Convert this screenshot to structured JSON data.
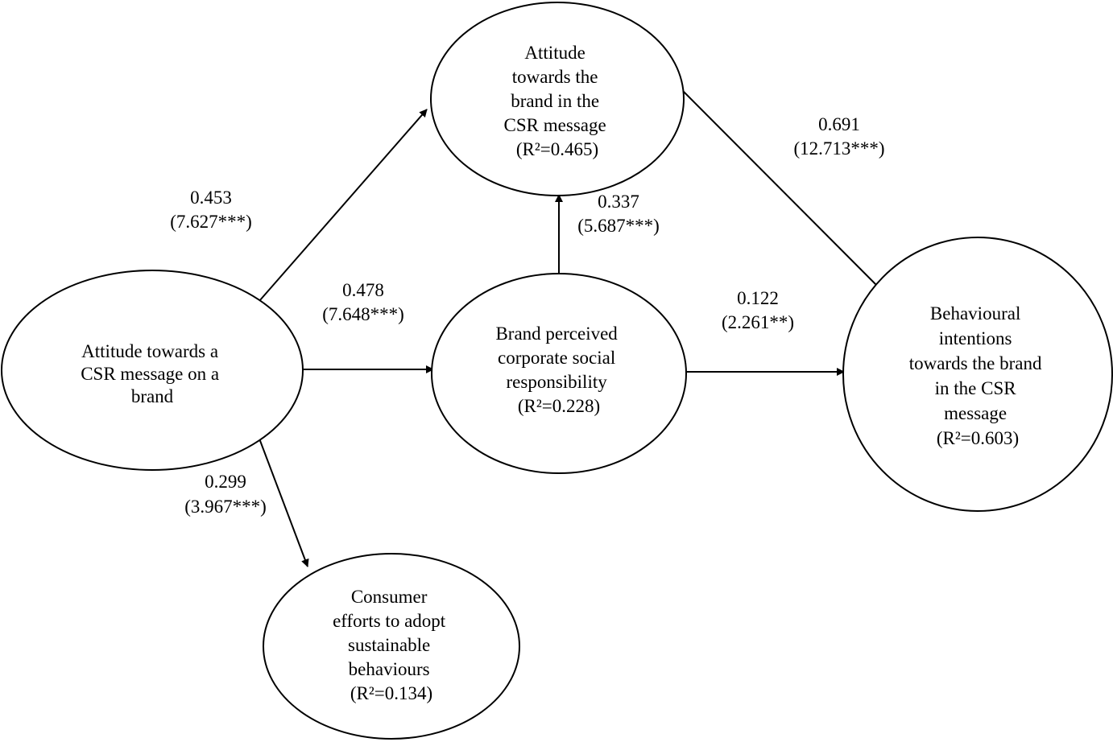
{
  "nodes": {
    "csr_attitude": {
      "lines": [
        "Attitude towards a",
        "CSR message on a",
        "brand"
      ]
    },
    "brand_attitude": {
      "lines": [
        "Attitude",
        "towards the",
        "brand in the",
        "CSR message",
        "(R²=0.465)"
      ]
    },
    "perceived_csr": {
      "lines": [
        "Brand perceived",
        "corporate social",
        "responsibility",
        "(R²=0.228)"
      ]
    },
    "behavioural_intentions": {
      "lines": [
        "Behavioural",
        "intentions",
        "towards the brand",
        "in the CSR",
        "message",
        "(R²=0.603)"
      ]
    },
    "consumer_efforts": {
      "lines": [
        "Consumer",
        "efforts to adopt",
        "sustainable",
        "behaviours",
        "(R²=0.134)"
      ]
    }
  },
  "edges": {
    "csr_to_brand_attitude": {
      "coef": "0.453",
      "t": "(7.627***)"
    },
    "csr_to_perceived": {
      "coef": "0.478",
      "t": "(7.648***)"
    },
    "perceived_to_brand_attitude": {
      "coef": "0.337",
      "t": "(5.687***)"
    },
    "brand_attitude_to_intentions": {
      "coef": "0.691",
      "t": "(12.713***)"
    },
    "perceived_to_intentions": {
      "coef": "0.122",
      "t": "(2.261**)"
    },
    "csr_to_efforts": {
      "coef": "0.299",
      "t": "(3.967***)"
    }
  }
}
